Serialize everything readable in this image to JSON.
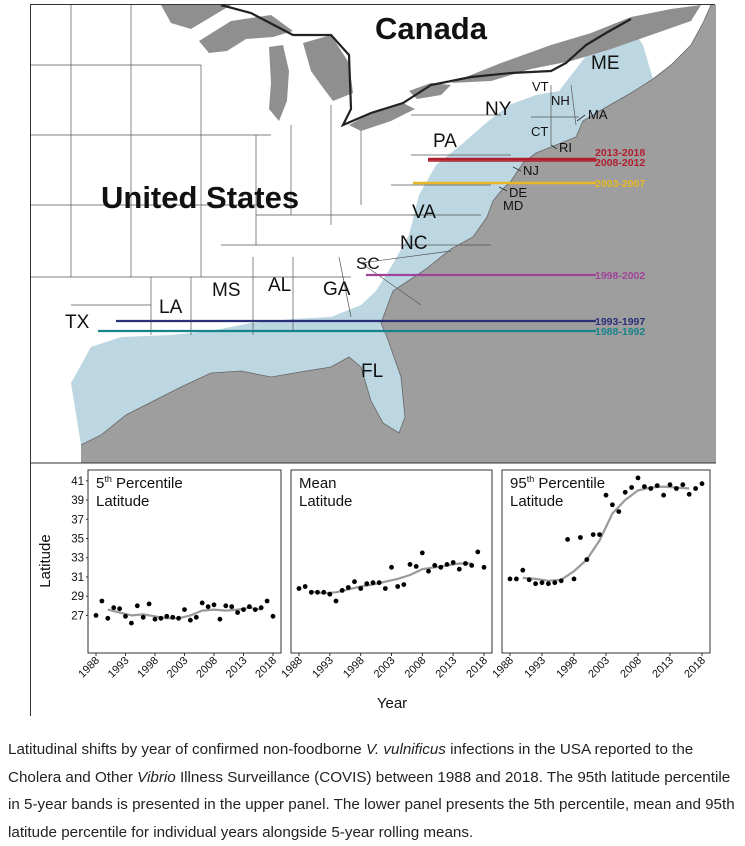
{
  "map": {
    "country_labels": [
      "Canada",
      "United States"
    ],
    "state_labels": [
      "ME",
      "VT",
      "NH",
      "MA",
      "NY",
      "CT",
      "RI",
      "PA",
      "NJ",
      "DE",
      "MD",
      "VA",
      "NC",
      "SC",
      "GA",
      "AL",
      "MS",
      "LA",
      "TX",
      "FL"
    ],
    "bands": [
      {
        "label": "2013-2018",
        "color": "#b01e2e"
      },
      {
        "label": "2008-2012",
        "color": "#b01e2e"
      },
      {
        "label": "2003-2007",
        "color": "#e8b827"
      },
      {
        "label": "1998-2002",
        "color": "#a0449a"
      },
      {
        "label": "1993-1997",
        "color": "#2a2f7a"
      },
      {
        "label": "1988-1992",
        "color": "#17838a"
      }
    ],
    "colors": {
      "ocean": "#9e9e9e",
      "coast_band": "#bcd6e2",
      "land": "#ffffff"
    }
  },
  "chart_data": [
    {
      "type": "scatter",
      "title": "5th Percentile Latitude",
      "title_parts": {
        "pre": "5",
        "sup": "th",
        "post": " Percentile",
        "line2": "Latitude"
      },
      "xlabel": "Year",
      "ylabel": "Latitude",
      "xlim": [
        1988,
        2018
      ],
      "ylim": [
        26,
        41.5
      ],
      "x_ticks": [
        "1988",
        "1993",
        "1998",
        "2003",
        "2008",
        "2013",
        "2018"
      ],
      "y_ticks": [
        "27",
        "29",
        "31",
        "33",
        "35",
        "37",
        "39",
        "41"
      ],
      "series": [
        {
          "kind": "points",
          "x": [
            1988,
            1989,
            1990,
            1991,
            1992,
            1993,
            1994,
            1995,
            1996,
            1997,
            1998,
            1999,
            2000,
            2001,
            2002,
            2003,
            2004,
            2005,
            2006,
            2007,
            2008,
            2009,
            2010,
            2011,
            2012,
            2013,
            2014,
            2015,
            2016,
            2017,
            2018
          ],
          "y": [
            27.0,
            28.5,
            26.7,
            27.8,
            27.7,
            26.9,
            26.2,
            28.0,
            26.8,
            28.2,
            26.6,
            26.7,
            26.9,
            26.8,
            26.7,
            27.6,
            26.5,
            26.8,
            28.3,
            27.9,
            28.1,
            26.6,
            28.0,
            27.9,
            27.3,
            27.6,
            27.9,
            27.6,
            27.8,
            28.5,
            26.9
          ]
        },
        {
          "kind": "rolling",
          "x": [
            1990,
            1992,
            1994,
            1996,
            1998,
            2000,
            2002,
            2004,
            2006,
            2008,
            2010,
            2012,
            2014,
            2016
          ],
          "y": [
            27.6,
            27.3,
            27.0,
            27.1,
            26.9,
            26.7,
            26.7,
            27.0,
            27.5,
            27.6,
            27.5,
            27.6,
            27.8,
            27.6
          ]
        }
      ]
    },
    {
      "type": "scatter",
      "title": "Mean Latitude",
      "title_parts": {
        "pre": "Mean",
        "sup": "",
        "post": "",
        "line2": "Latitude"
      },
      "xlabel": "Year",
      "ylabel": "Latitude",
      "xlim": [
        1988,
        2018
      ],
      "ylim": [
        26,
        41.5
      ],
      "x_ticks": [
        "1988",
        "1993",
        "1998",
        "2003",
        "2008",
        "2013",
        "2018"
      ],
      "y_ticks": [
        "27",
        "29",
        "31",
        "33",
        "35",
        "37",
        "39",
        "41"
      ],
      "series": [
        {
          "kind": "points",
          "x": [
            1988,
            1989,
            1990,
            1991,
            1992,
            1993,
            1994,
            1995,
            1996,
            1997,
            1998,
            1999,
            2000,
            2001,
            2002,
            2003,
            2004,
            2005,
            2006,
            2007,
            2008,
            2009,
            2010,
            2011,
            2012,
            2013,
            2014,
            2015,
            2016,
            2017,
            2018
          ],
          "y": [
            29.8,
            30.0,
            29.4,
            29.4,
            29.4,
            29.2,
            28.5,
            29.6,
            29.9,
            30.5,
            29.8,
            30.3,
            30.4,
            30.4,
            29.8,
            32.0,
            30.0,
            30.2,
            32.3,
            32.1,
            33.5,
            31.6,
            32.2,
            32.0,
            32.3,
            32.5,
            31.8,
            32.4,
            32.2,
            33.6,
            32.0
          ]
        },
        {
          "kind": "rolling",
          "x": [
            1990,
            1992,
            1994,
            1996,
            1998,
            2000,
            2002,
            2004,
            2006,
            2008,
            2010,
            2012,
            2014,
            2016
          ],
          "y": [
            29.5,
            29.3,
            29.4,
            29.7,
            30.0,
            30.2,
            30.5,
            30.8,
            31.2,
            31.8,
            32.0,
            32.2,
            32.4,
            32.4
          ]
        }
      ]
    },
    {
      "type": "scatter",
      "title": "95th Percentile Latitude",
      "title_parts": {
        "pre": "95",
        "sup": "th",
        "post": " Percentile",
        "line2": "Latitude"
      },
      "xlabel": "Year",
      "ylabel": "Latitude",
      "xlim": [
        1988,
        2018
      ],
      "ylim": [
        26,
        41.5
      ],
      "x_ticks": [
        "1988",
        "1993",
        "1998",
        "2003",
        "2008",
        "2013",
        "2018"
      ],
      "y_ticks": [
        "27",
        "29",
        "31",
        "33",
        "35",
        "37",
        "39",
        "41"
      ],
      "series": [
        {
          "kind": "points",
          "x": [
            1988,
            1989,
            1990,
            1991,
            1992,
            1993,
            1994,
            1995,
            1996,
            1997,
            1998,
            1999,
            2000,
            2001,
            2002,
            2003,
            2004,
            2005,
            2006,
            2007,
            2008,
            2009,
            2010,
            2011,
            2012,
            2013,
            2014,
            2015,
            2016,
            2017,
            2018
          ],
          "y": [
            30.8,
            30.8,
            31.7,
            30.7,
            30.3,
            30.4,
            30.3,
            30.4,
            30.6,
            34.9,
            30.8,
            35.1,
            32.8,
            35.4,
            35.4,
            39.5,
            38.5,
            37.8,
            39.8,
            40.3,
            41.3,
            40.4,
            40.2,
            40.5,
            39.5,
            40.6,
            40.2,
            40.6,
            39.6,
            40.2,
            40.7
          ]
        },
        {
          "kind": "rolling",
          "x": [
            1990,
            1992,
            1994,
            1996,
            1998,
            2000,
            2002,
            2004,
            2006,
            2008,
            2010,
            2012,
            2014,
            2016
          ],
          "y": [
            30.9,
            30.8,
            30.6,
            30.7,
            31.6,
            32.8,
            34.8,
            37.6,
            39.0,
            40.0,
            40.3,
            40.4,
            40.3,
            40.2
          ]
        }
      ]
    }
  ],
  "caption": {
    "t1": "Latitudinal shifts by year of confirmed non-foodborne ",
    "em1": "V. vulnificus",
    "t2": " infections in the USA reported to the Cholera and Other ",
    "em2": "Vibrio",
    "t3": " Illness Surveillance (COVIS) between 1988 and 2018. The 95th latitude percentile in 5-year bands is presented in the upper panel. The lower panel presents the 5th percentile, mean and 95th latitude percentile for individual years alongside 5-year rolling means."
  }
}
